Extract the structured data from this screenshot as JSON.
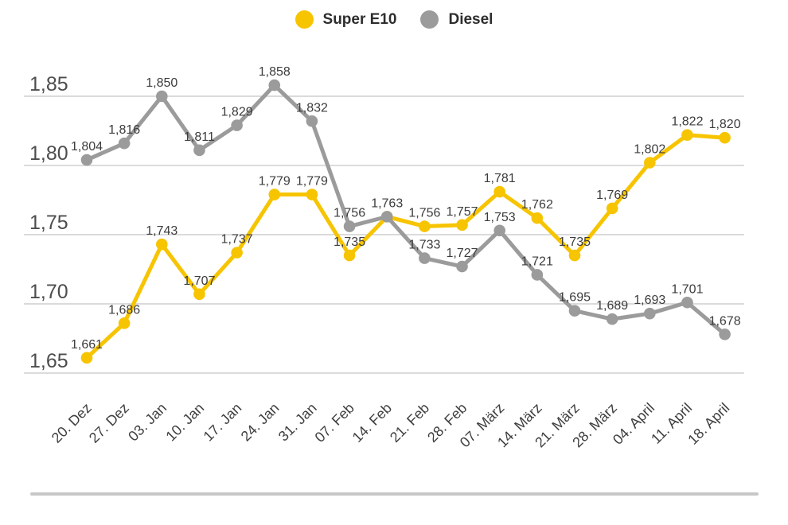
{
  "legend": {
    "items": [
      {
        "label": "Super E10",
        "color": "#F7C400"
      },
      {
        "label": "Diesel",
        "color": "#9B9B9B"
      }
    ]
  },
  "chart_data": {
    "type": "line",
    "title": "",
    "xlabel": "",
    "ylabel": "",
    "legend_position": "top",
    "grid": "horizontal",
    "grid_color": "#CFCFCF",
    "divider_color": "#C7C7C7",
    "ylim": [
      1.65,
      1.85
    ],
    "y_ticks": {
      "values": [
        1.85,
        1.8,
        1.75,
        1.7,
        1.65
      ],
      "labels": [
        "1,85",
        "1,80",
        "1,75",
        "1,70",
        "1,65"
      ]
    },
    "categories": [
      "20. Dez",
      "27. Dez",
      "03. Jan",
      "10. Jan",
      "17. Jan",
      "24. Jan",
      "31. Jan",
      "07. Feb",
      "14. Feb",
      "21. Feb",
      "28. Feb",
      "07. März",
      "14. März",
      "21. März",
      "28. März",
      "04. April",
      "11. April",
      "18. April"
    ],
    "series": [
      {
        "name": "Super E10",
        "color": "#F7C400",
        "values": [
          1.661,
          1.686,
          1.743,
          1.707,
          1.737,
          1.779,
          1.779,
          1.735,
          1.763,
          1.756,
          1.757,
          1.781,
          1.762,
          1.735,
          1.769,
          1.802,
          1.822,
          1.82
        ],
        "point_labels": [
          "1,661",
          "1,686",
          "1,743",
          "1,707",
          "1,737",
          "1,779",
          "1,779",
          "1,735",
          "",
          "1,756",
          "1,757",
          "1,781",
          "1,762",
          "1,735",
          "1,769",
          "1,802",
          "1,822",
          "1,820"
        ]
      },
      {
        "name": "Diesel",
        "color": "#9B9B9B",
        "values": [
          1.804,
          1.816,
          1.85,
          1.811,
          1.829,
          1.858,
          1.832,
          1.756,
          1.763,
          1.733,
          1.727,
          1.753,
          1.721,
          1.695,
          1.689,
          1.693,
          1.701,
          1.678
        ],
        "point_labels": [
          "1,804",
          "1,816",
          "1,850",
          "1,811",
          "1,829",
          "1,858",
          "1,832",
          "1,756",
          "1,763",
          "1,733",
          "1,727",
          "1,753",
          "1,721",
          "1,695",
          "1,689",
          "1,693",
          "1,701",
          "1,678"
        ]
      }
    ]
  }
}
